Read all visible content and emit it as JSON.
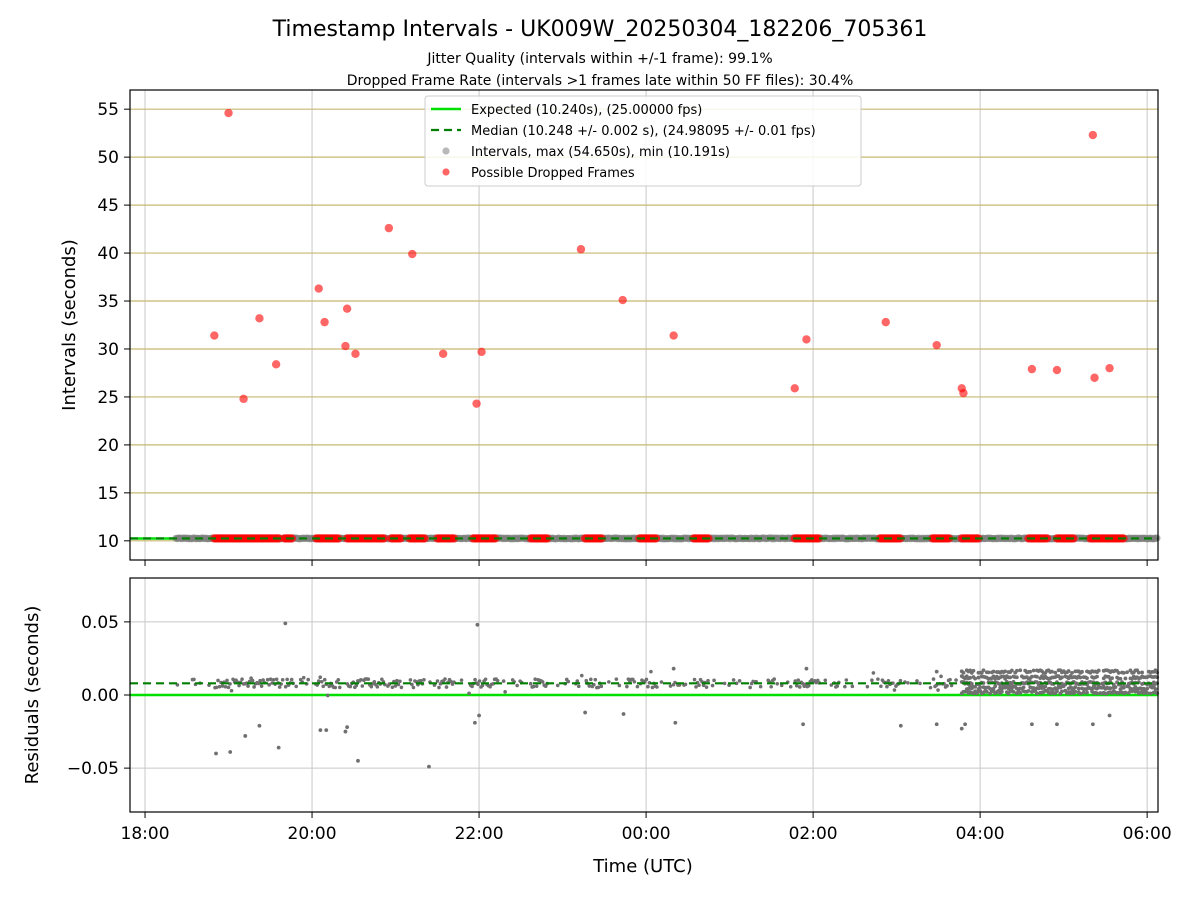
{
  "figure": {
    "title": "Timestamp Intervals - UK009W_20250304_182206_705361",
    "subtitle_1": "Jitter Quality (intervals within +/-1 frame): 99.1%",
    "subtitle_2": "Dropped Frame Rate (intervals >1 frames late within 50 FF files): 30.4%",
    "xlabel": "Time (UTC)"
  },
  "colors": {
    "expected_line": "#00e000",
    "median_line": "#007f00",
    "intervals_points": "#808080",
    "dropped_points": "#ff0000",
    "top_gridlines": "#c8b870",
    "grid": "#c8c8c8"
  },
  "chart_data": [
    {
      "type": "scatter",
      "panel": "intervals",
      "ylabel": "Intervals (seconds)",
      "x_unit": "hours since 18:00 UTC",
      "xlim": [
        -0.18,
        12.13
      ],
      "ylim": [
        8.0,
        57.0
      ],
      "x_ticks": [
        0,
        2,
        4,
        6,
        8,
        10,
        12
      ],
      "y_ticks": [
        10,
        15,
        20,
        25,
        30,
        35,
        40,
        45,
        50,
        55
      ],
      "grid": "on",
      "legend_position": "top-center",
      "legend": [
        "Expected (10.240s), (25.00000 fps)",
        "Median (10.248 +/- 0.002 s), (24.98095 +/- 0.01 fps)",
        "Intervals, max (54.650s), min (10.191s)",
        "Possible Dropped Frames"
      ],
      "expected_value": 10.24,
      "median_value": 10.248,
      "interval_baseline_range": [
        0.37,
        12.13
      ],
      "series": [
        {
          "name": "Possible Dropped Frames",
          "points": [
            [
              0.83,
              31.4
            ],
            [
              1.0,
              54.6
            ],
            [
              1.18,
              24.8
            ],
            [
              1.37,
              33.2
            ],
            [
              1.57,
              28.4
            ],
            [
              2.08,
              36.3
            ],
            [
              2.15,
              32.8
            ],
            [
              2.4,
              30.3
            ],
            [
              2.42,
              34.2
            ],
            [
              2.52,
              29.5
            ],
            [
              2.92,
              42.6
            ],
            [
              3.2,
              39.9
            ],
            [
              3.57,
              29.5
            ],
            [
              3.97,
              24.3
            ],
            [
              4.03,
              29.7
            ],
            [
              5.22,
              40.4
            ],
            [
              5.72,
              35.1
            ],
            [
              6.33,
              31.4
            ],
            [
              7.78,
              25.9
            ],
            [
              7.92,
              31.0
            ],
            [
              8.87,
              32.8
            ],
            [
              9.48,
              30.4
            ],
            [
              9.78,
              25.9
            ],
            [
              9.8,
              25.4
            ],
            [
              10.62,
              27.9
            ],
            [
              10.92,
              27.8
            ],
            [
              11.37,
              27.0
            ],
            [
              11.35,
              52.3
            ],
            [
              11.55,
              28.0
            ]
          ],
          "baseline_clusters": [
            [
              0.83,
              1.45
            ],
            [
              1.47,
              1.62
            ],
            [
              1.67,
              1.77
            ],
            [
              2.05,
              2.32
            ],
            [
              2.42,
              2.88
            ],
            [
              2.95,
              3.08
            ],
            [
              3.17,
              3.35
            ],
            [
              3.5,
              3.7
            ],
            [
              3.93,
              4.2
            ],
            [
              4.62,
              4.82
            ],
            [
              5.27,
              5.47
            ],
            [
              5.92,
              6.12
            ],
            [
              6.57,
              6.75
            ],
            [
              7.78,
              8.08
            ],
            [
              8.8,
              9.05
            ],
            [
              9.43,
              9.65
            ],
            [
              9.78,
              10.0
            ],
            [
              10.58,
              10.82
            ],
            [
              10.92,
              11.12
            ],
            [
              11.32,
              11.72
            ]
          ]
        }
      ]
    },
    {
      "type": "scatter",
      "panel": "residuals",
      "ylabel": "Residuals (seconds)",
      "xlim": [
        -0.18,
        12.13
      ],
      "ylim": [
        -0.08,
        0.08
      ],
      "y_ticks": [
        0.05,
        0.0,
        -0.05
      ],
      "y_tick_labels": [
        "0.05",
        "0.00",
        "−0.05"
      ],
      "x_tick_labels": [
        "18:00",
        "20:00",
        "22:00",
        "00:00",
        "02:00",
        "04:00",
        "06:00"
      ],
      "x_ticks": [
        0,
        2,
        4,
        6,
        8,
        10,
        12
      ],
      "grid": "on",
      "expected_residual": 0.0,
      "median_residual": 0.008,
      "series": [
        {
          "name": "Intervals",
          "outliers": [
            [
              0.85,
              -0.04
            ],
            [
              1.02,
              -0.039
            ],
            [
              1.2,
              -0.028
            ],
            [
              1.37,
              -0.021
            ],
            [
              1.6,
              -0.036
            ],
            [
              1.68,
              0.049
            ],
            [
              2.1,
              -0.024
            ],
            [
              2.17,
              -0.024
            ],
            [
              2.4,
              -0.025
            ],
            [
              2.42,
              -0.022
            ],
            [
              2.55,
              -0.045
            ],
            [
              3.4,
              -0.049
            ],
            [
              3.95,
              -0.019
            ],
            [
              4.0,
              -0.014
            ],
            [
              3.98,
              0.048
            ],
            [
              5.27,
              -0.012
            ],
            [
              5.73,
              -0.013
            ],
            [
              6.35,
              -0.019
            ],
            [
              7.88,
              -0.02
            ],
            [
              9.05,
              -0.021
            ],
            [
              9.48,
              -0.02
            ],
            [
              9.78,
              -0.023
            ],
            [
              9.82,
              -0.02
            ],
            [
              10.62,
              -0.02
            ],
            [
              10.92,
              -0.02
            ],
            [
              11.35,
              -0.02
            ],
            [
              11.55,
              -0.014
            ],
            [
              6.33,
              0.018
            ],
            [
              7.92,
              0.018
            ],
            [
              9.48,
              0.016
            ]
          ],
          "dense_band_range": [
            9.78,
            12.13
          ],
          "dense_band_levels": [
            0.002,
            0.005,
            0.008,
            0.012,
            0.016
          ]
        }
      ]
    }
  ]
}
